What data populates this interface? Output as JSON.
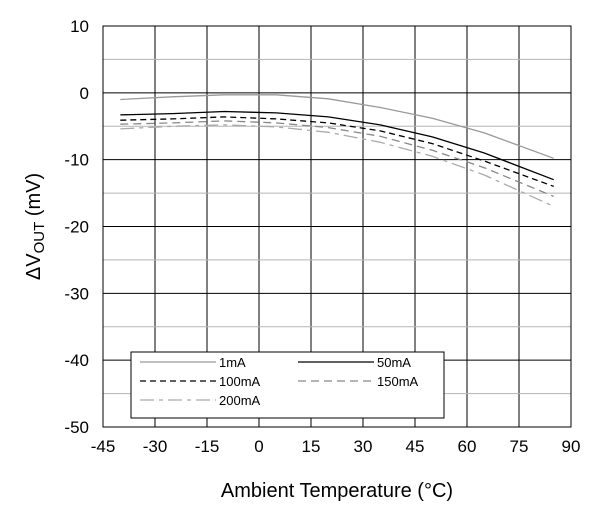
{
  "chart_data": {
    "type": "line",
    "xlabel": "Ambient Temperature (°C)",
    "ylabel_main": "ΔV",
    "ylabel_sub": "OUT",
    "ylabel_unit": " (mV)",
    "xlim": [
      -45,
      90
    ],
    "ylim": [
      -50,
      10
    ],
    "x_ticks": [
      "-45",
      "-30",
      "-15",
      "0",
      "15",
      "30",
      "45",
      "60",
      "75",
      "90"
    ],
    "y_ticks": [
      "10",
      "0",
      "-10",
      "-20",
      "-30",
      "-40",
      "-50"
    ],
    "grid": true,
    "legend_position": "bottom-left",
    "x": [
      -40,
      -25,
      -10,
      5,
      20,
      35,
      50,
      65,
      85
    ],
    "series": [
      {
        "name": "1mA",
        "values": [
          -1.0,
          -0.6,
          -0.3,
          -0.3,
          -0.9,
          -2.2,
          -3.8,
          -6.0,
          -9.8
        ],
        "color": "#999999",
        "dash": ""
      },
      {
        "name": "50mA",
        "values": [
          -3.3,
          -3.1,
          -2.8,
          -3.0,
          -3.6,
          -4.8,
          -6.6,
          -9.0,
          -13.0
        ],
        "color": "#000000",
        "dash": ""
      },
      {
        "name": "100mA",
        "values": [
          -4.1,
          -3.9,
          -3.6,
          -3.9,
          -4.5,
          -5.7,
          -7.6,
          -10.2,
          -14.0
        ],
        "color": "#000000",
        "dash": "6,4"
      },
      {
        "name": "150mA",
        "values": [
          -4.7,
          -4.5,
          -4.2,
          -4.5,
          -5.2,
          -6.5,
          -8.6,
          -11.2,
          -15.5
        ],
        "color": "#888888",
        "dash": "8,5"
      },
      {
        "name": "200mA",
        "values": [
          -5.4,
          -5.0,
          -4.8,
          -5.1,
          -5.9,
          -7.4,
          -9.5,
          -12.3,
          -17.0
        ],
        "color": "#aaaaaa",
        "dash": "14,5,4,5"
      }
    ]
  }
}
